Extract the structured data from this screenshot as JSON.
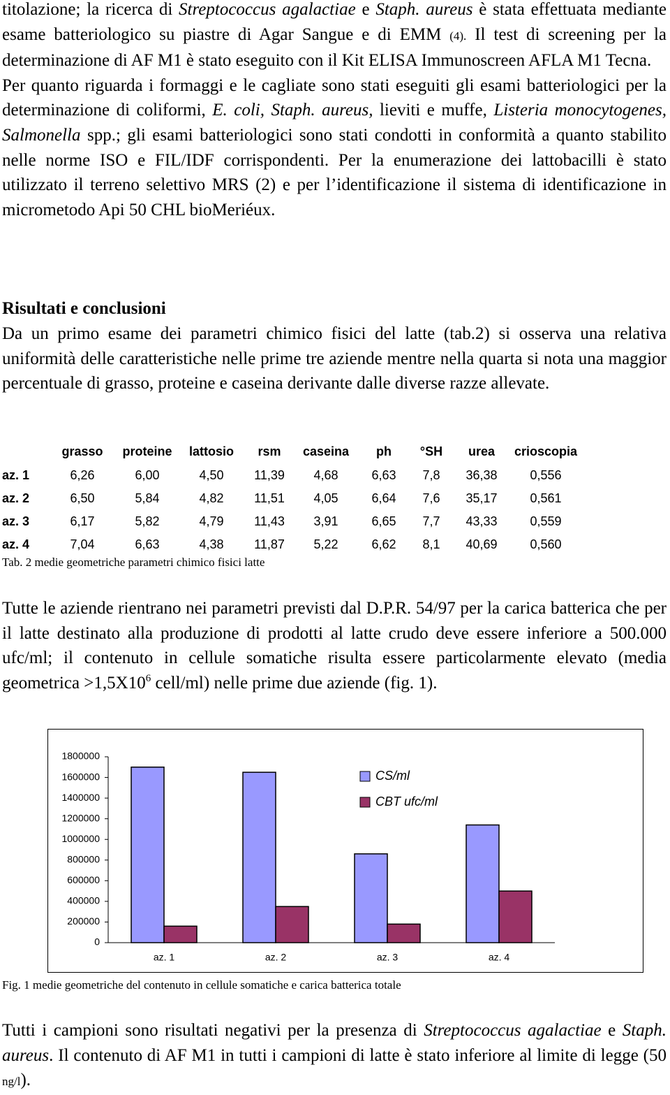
{
  "intro": [
    [
      {
        "text": "titolazione; la ricerca di "
      },
      {
        "text": "Streptococcus agalactiae",
        "style": "italic"
      },
      {
        "text": " e "
      },
      {
        "text": "Staph. aureus",
        "style": "italic"
      },
      {
        "text": " è stata effettuata mediante esame batteriologico su piastre di Agar Sangue e di EMM "
      },
      {
        "text": "(4).",
        "style": "small"
      },
      {
        "text": " Il test di screening per la determinazione di AF M1 è stato eseguito con il Kit ELISA Immunoscreen AFLA M1 Tecna."
      }
    ],
    [
      {
        "text": "Per quanto riguarda i formaggi e le cagliate sono stati eseguiti gli esami batteriologici per la determinazione di coliformi, "
      },
      {
        "text": "E. coli, Staph. aureus,",
        "style": "italic"
      },
      {
        "text": " lieviti e muffe, "
      },
      {
        "text": "Listeria monocytogenes, Salmonella",
        "style": "italic"
      },
      {
        "text": " spp.; gli esami batteriologici sono stati condotti in conformità a quanto stabilito nelle norme ISO e FIL/IDF corrispondenti. Per la enumerazione dei lattobacilli è stato utilizzato il terreno selettivo MRS (2) e per l’identificazione il sistema di identificazione in micrometodo Api 50 CHL bioMeriéux."
      }
    ]
  ],
  "heading": "Risultati e conclusioni",
  "results": [
    {
      "text": "Da un primo esame dei parametri chimico fisici del latte (tab.2) si osserva una relativa uniformità delle caratteristiche nelle prime tre aziende mentre nella quarta si nota una maggior percentuale di grasso, proteine e caseina derivante dalle diverse razze allevate."
    }
  ],
  "table": {
    "columns": [
      "grasso",
      "proteine",
      "lattosio",
      "rsm",
      "caseina",
      "ph",
      "°SH",
      "urea",
      "crioscopia"
    ],
    "rows": [
      {
        "label": "az. 1",
        "cells": [
          "6,26",
          "6,00",
          "4,50",
          "11,39",
          "4,68",
          "6,63",
          "7,8",
          "36,38",
          "0,556"
        ]
      },
      {
        "label": "az. 2",
        "cells": [
          "6,50",
          "5,84",
          "4,82",
          "11,51",
          "4,05",
          "6,64",
          "7,6",
          "35,17",
          "0,561"
        ]
      },
      {
        "label": "az. 3",
        "cells": [
          "6,17",
          "5,82",
          "4,79",
          "11,43",
          "3,91",
          "6,65",
          "7,7",
          "43,33",
          "0,559"
        ]
      },
      {
        "label": "az. 4",
        "cells": [
          "7,04",
          "6,63",
          "4,38",
          "11,87",
          "5,22",
          "6,62",
          "8,1",
          "40,69",
          "0,560"
        ]
      }
    ],
    "caption": "Tab. 2 medie geometriche parametri chimico fisici latte"
  },
  "somatic": [
    {
      "text": "Tutte le aziende rientrano nei parametri previsti dal D.P.R. 54/97 per la carica batterica che per il latte destinato alla produzione di prodotti al latte crudo deve essere inferiore a 500.000 ufc/ml; il contenuto in cellule somatiche risulta essere particolarmente elevato (media geometrica >1,5X10"
    },
    {
      "text": "6",
      "style": "sup"
    },
    {
      "text": " cell/ml) nelle prime due aziende (fig. 1)."
    }
  ],
  "chart_data": {
    "type": "bar",
    "categories": [
      "az. 1",
      "az. 2",
      "az. 3",
      "az. 4"
    ],
    "series": [
      {
        "name": "CS/ml",
        "color": "#9999ff",
        "values": [
          1700000,
          1650000,
          860000,
          1140000
        ]
      },
      {
        "name": "CBT ufc/ml",
        "color": "#993366",
        "values": [
          160000,
          350000,
          180000,
          500000
        ]
      }
    ],
    "ylim": [
      0,
      1800000
    ],
    "yticks": [
      0,
      200000,
      400000,
      600000,
      800000,
      1000000,
      1200000,
      1400000,
      1600000,
      1800000
    ],
    "grid": false,
    "legend": "upper right"
  },
  "figure_caption": "Fig. 1 medie geometriche del contenuto in cellule somatiche e carica batterica totale",
  "closing": [
    {
      "text": "Tutti i campioni sono risultati negativi per la presenza di "
    },
    {
      "text": "Streptococcus agalactiae",
      "style": "italic"
    },
    {
      "text": " e "
    },
    {
      "text": "Staph. aureus",
      "style": "italic"
    },
    {
      "text": ". Il contenuto di AF M1 in tutti i campioni di latte è stato inferiore al limite di legge (50 "
    },
    {
      "text": "ng/l",
      "style": "small"
    },
    {
      "text": ")."
    }
  ]
}
